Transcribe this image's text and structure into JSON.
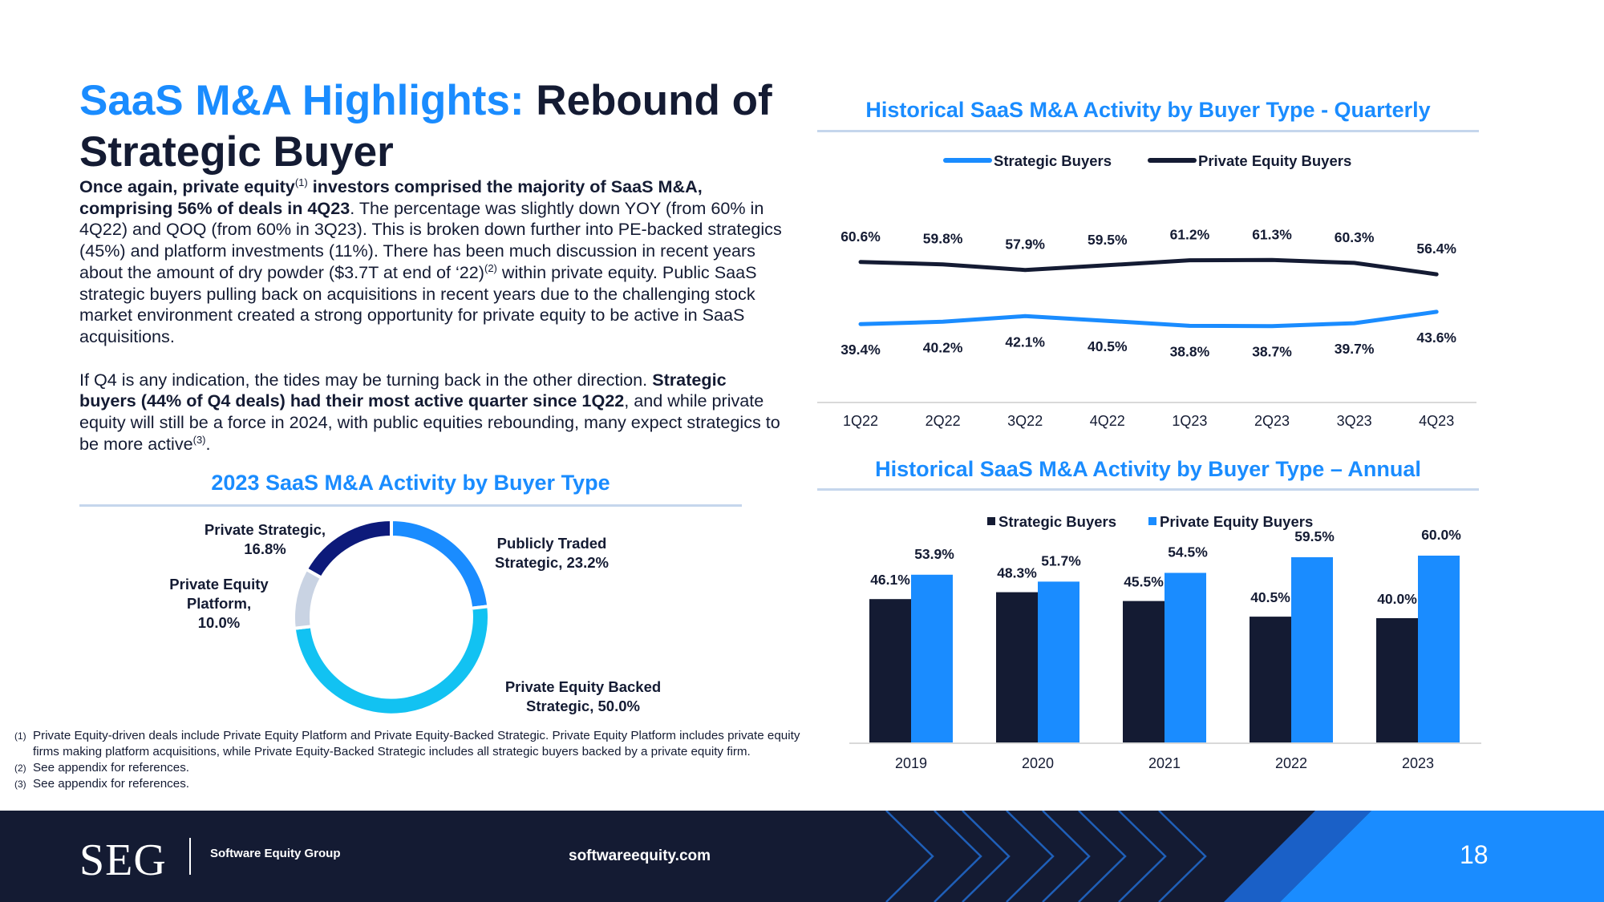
{
  "title": {
    "highlight": "SaaS M&A Highlights:",
    "rest": "Rebound of Strategic Buyer"
  },
  "body": {
    "p1": {
      "b1": "Once again, private equity",
      "sup1": "(1)",
      "b2": " investors comprised the majority of SaaS M&A, comprising 56% of deals in 4Q23",
      "t1": ". The percentage was slightly down YOY (from 60% in 4Q22) and QOQ (from 60% in 3Q23). This is broken down further into PE-backed strategics (45%) and platform investments (11%). There has been much discussion in recent years about the amount of dry powder ($3.7T at end of ‘22)",
      "sup2": "(2)",
      "t2": " within private equity. Public SaaS strategic buyers pulling back on acquisitions in recent years due to the challenging stock market environment created a strong opportunity for private equity to be active in SaaS acquisitions."
    },
    "p2": {
      "t1": "If Q4 is any indication, the tides may be turning back in the other direction. ",
      "b1": "Strategic buyers (44% of Q4 deals) had their most active quarter since 1Q22",
      "t2": ", and while private equity will still be a force in 2024, with public equities rebounding, many expect strategics to be more active",
      "sup1": "(3)",
      "t3": "."
    }
  },
  "donut": {
    "title": "2023 SaaS M&A Activity by Buyer Type",
    "labels": {
      "public": [
        "Publicly Traded",
        "Strategic, 23.2%"
      ],
      "pe_backed": [
        "Private Equity Backed",
        "Strategic, 50.0%"
      ],
      "pe_platform": [
        "Private Equity",
        "Platform,",
        "10.0%"
      ],
      "private_strategic": [
        "Private Strategic,",
        "16.8%"
      ]
    }
  },
  "footnotes": [
    {
      "num": "(1)",
      "text": "Private Equity-driven deals include Private Equity Platform and Private Equity-Backed Strategic. Private Equity Platform includes private equity firms making platform acquisitions, while Private Equity-Backed Strategic includes all strategic buyers backed by a private equity firm."
    },
    {
      "num": "(2)",
      "text": "See appendix for references."
    },
    {
      "num": "(3)",
      "text": "See appendix for references."
    }
  ],
  "footer": {
    "logo": "SEG",
    "company": "Software Equity Group",
    "website": "softwareequity.com",
    "page": "18"
  },
  "colors": {
    "accent_blue": "#1a8cff",
    "navy": "#141b33",
    "donut_public": "#1a8cff",
    "donut_pe_backed": "#12c2f2",
    "donut_pe_platform": "#c9d3e3",
    "donut_private_strategic": "#0d1a7a"
  },
  "chart_data": [
    {
      "type": "line",
      "title": "Historical SaaS M&A Activity by Buyer Type - Quarterly",
      "categories": [
        "1Q22",
        "2Q22",
        "3Q22",
        "4Q22",
        "1Q23",
        "2Q23",
        "3Q23",
        "4Q23"
      ],
      "series": [
        {
          "name": "Strategic Buyers",
          "color": "#1a8cff",
          "values": [
            39.4,
            40.2,
            42.1,
            40.5,
            38.8,
            38.7,
            39.7,
            43.6
          ],
          "labels": [
            "39.4%",
            "40.2%",
            "42.1%",
            "40.5%",
            "38.8%",
            "38.7%",
            "39.7%",
            "43.6%"
          ]
        },
        {
          "name": "Private Equity Buyers",
          "color": "#141b33",
          "values": [
            60.6,
            59.8,
            57.9,
            59.5,
            61.2,
            61.3,
            60.3,
            56.4
          ],
          "labels": [
            "60.6%",
            "59.8%",
            "57.9%",
            "59.5%",
            "61.2%",
            "61.3%",
            "60.3%",
            "56.4%"
          ]
        }
      ],
      "ylim": [
        0,
        100
      ],
      "legend": "top",
      "grid": false
    },
    {
      "type": "bar",
      "title": "Historical SaaS M&A Activity by Buyer Type – Annual",
      "categories": [
        "2019",
        "2020",
        "2021",
        "2022",
        "2023"
      ],
      "series": [
        {
          "name": "Strategic Buyers",
          "color": "#141b33",
          "values": [
            46.1,
            48.3,
            45.5,
            40.5,
            40.0
          ],
          "labels": [
            "46.1%",
            "48.3%",
            "45.5%",
            "40.5%",
            "40.0%"
          ]
        },
        {
          "name": "Private Equity Buyers",
          "color": "#1a8cff",
          "values": [
            53.9,
            51.7,
            54.5,
            59.5,
            60.0
          ],
          "labels": [
            "53.9%",
            "51.7%",
            "54.5%",
            "59.5%",
            "60.0%"
          ]
        }
      ],
      "ylim": [
        0,
        100
      ],
      "legend": "top",
      "grid": false
    },
    {
      "type": "pie",
      "title": "2023 SaaS M&A Activity by Buyer Type",
      "slices": [
        {
          "name": "Publicly Traded Strategic",
          "value": 23.2,
          "color": "#1a8cff"
        },
        {
          "name": "Private Equity Backed Strategic",
          "value": 50.0,
          "color": "#12c2f2"
        },
        {
          "name": "Private Equity Platform",
          "value": 10.0,
          "color": "#c9d3e3"
        },
        {
          "name": "Private Strategic",
          "value": 16.8,
          "color": "#0d1a7a"
        }
      ]
    }
  ]
}
